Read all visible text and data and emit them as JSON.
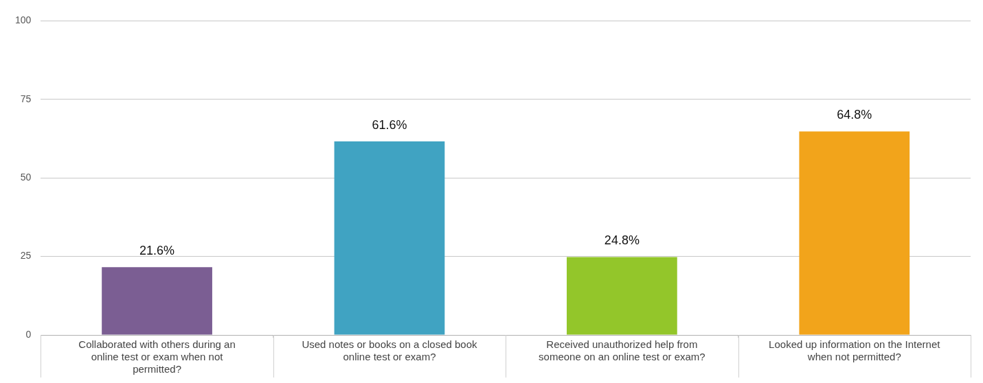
{
  "chart_data": {
    "type": "bar",
    "categories": [
      "Collaborated with others during an online test or exam when not permitted?",
      "Used notes or books on a closed book online test or exam?",
      "Received unauthorized help from someone on an online test or exam?",
      "Looked up information on the Internet when not permitted?"
    ],
    "values": [
      21.6,
      61.6,
      24.8,
      64.8
    ],
    "colors": [
      "#7b5e93",
      "#40a3c2",
      "#93c62a",
      "#f2a41b"
    ],
    "value_labels": [
      "21.6%",
      "61.6%",
      "24.8%",
      "64.8%"
    ],
    "ylim": [
      0,
      100
    ],
    "yticks": [
      0,
      25,
      50,
      75,
      100
    ],
    "grid": "y",
    "legend": false
  }
}
